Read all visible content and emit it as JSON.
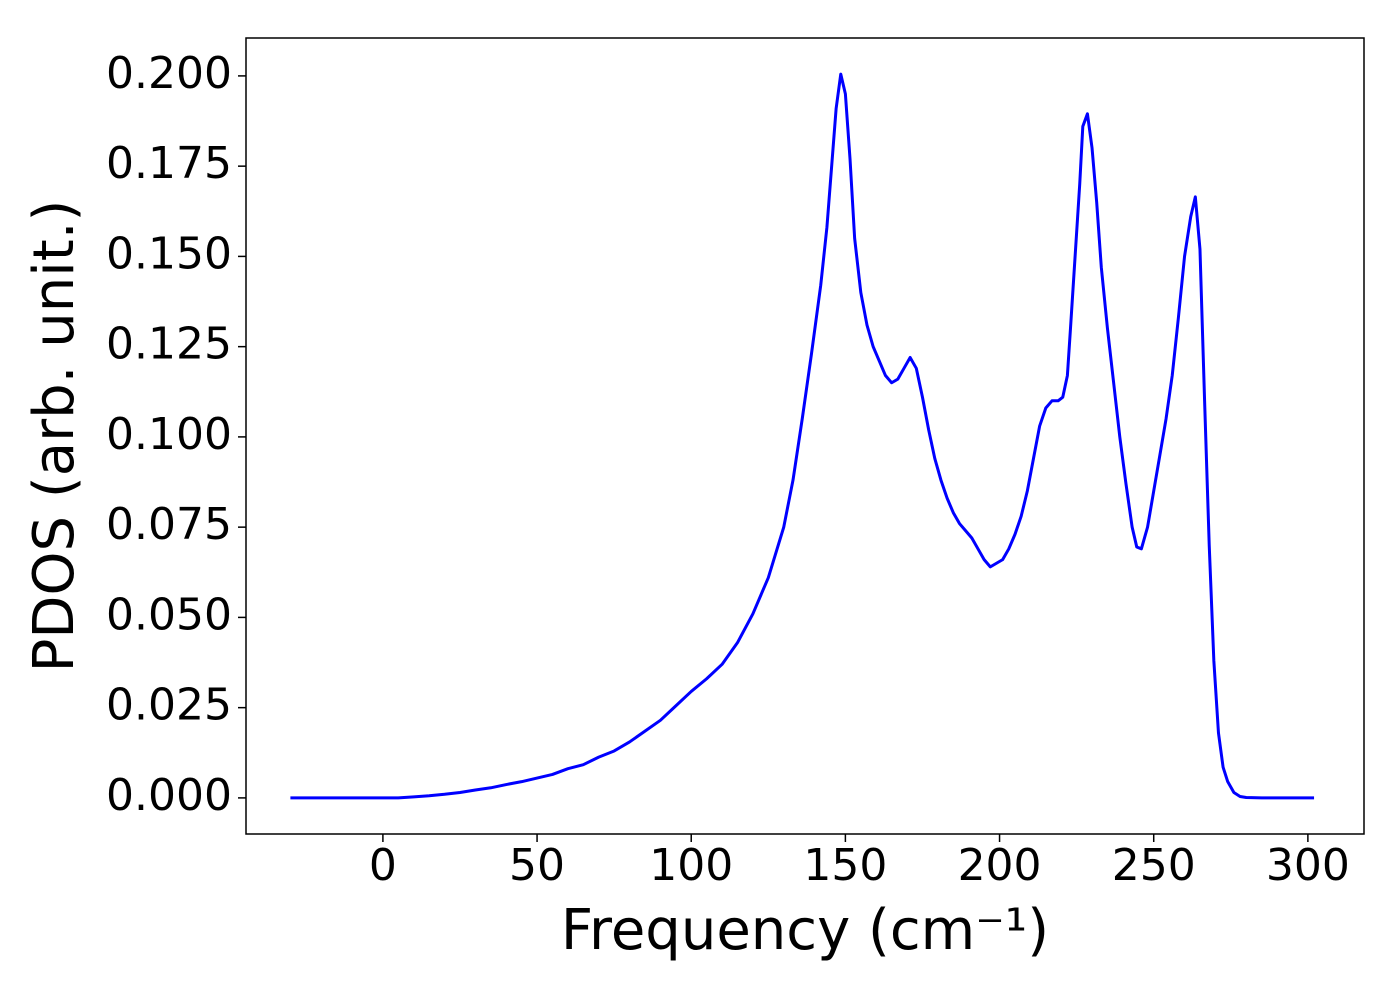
{
  "chart_data": {
    "type": "line",
    "xlabel": "Frequency (cm⁻¹)",
    "ylabel": "PDOS (arb. unit.)",
    "xlim": [
      -44.4,
      318.2
    ],
    "ylim": [
      -0.01,
      0.2105
    ],
    "xticks": [
      0,
      50,
      100,
      150,
      200,
      250,
      300
    ],
    "yticks": [
      {
        "value": 0,
        "label": "0.000"
      },
      {
        "value": 0.025,
        "label": "0.025"
      },
      {
        "value": 0.05,
        "label": "0.050"
      },
      {
        "value": 0.075,
        "label": "0.075"
      },
      {
        "value": 0.1,
        "label": "0.100"
      },
      {
        "value": 0.125,
        "label": "0.125"
      },
      {
        "value": 0.15,
        "label": "0.150"
      },
      {
        "value": 0.175,
        "label": "0.175"
      },
      {
        "value": 0.2,
        "label": "0.200"
      }
    ],
    "grid": false,
    "series": [
      {
        "color": "#0000ff",
        "x": [
          -30,
          -20,
          -10,
          0,
          5,
          10,
          15,
          20,
          25,
          30,
          35,
          40,
          45,
          50,
          55,
          60,
          65,
          70,
          75,
          80,
          85,
          90,
          95,
          100,
          105,
          110,
          115,
          120,
          125,
          130,
          133,
          136,
          139,
          142,
          144,
          146,
          147,
          148.5,
          150,
          151.5,
          153,
          155,
          157,
          159,
          161,
          163,
          165,
          167,
          169,
          171,
          173,
          175,
          177,
          179,
          181,
          183,
          185,
          187,
          189,
          191,
          193,
          195,
          197,
          199,
          201,
          203,
          205,
          207,
          209,
          211,
          213,
          215,
          217,
          219,
          220.5,
          222,
          223,
          224.5,
          226,
          227,
          228.5,
          230,
          231.5,
          233,
          235,
          237,
          239,
          241,
          243,
          244.5,
          246,
          248,
          250,
          252,
          254,
          256,
          258,
          260,
          262,
          263.5,
          265,
          266.5,
          268,
          269.5,
          271,
          272.5,
          274,
          276,
          278,
          280,
          285,
          290,
          295,
          302
        ],
        "values": [
          0,
          0,
          0,
          0,
          0,
          0.0003,
          0.0006,
          0.001,
          0.0015,
          0.0022,
          0.0028,
          0.0037,
          0.0045,
          0.0055,
          0.0065,
          0.0081,
          0.0092,
          0.0113,
          0.013,
          0.0155,
          0.0185,
          0.0215,
          0.0255,
          0.0295,
          0.033,
          0.037,
          0.043,
          0.051,
          0.061,
          0.075,
          0.088,
          0.105,
          0.123,
          0.142,
          0.158,
          0.18,
          0.191,
          0.2005,
          0.195,
          0.177,
          0.155,
          0.14,
          0.131,
          0.125,
          0.121,
          0.117,
          0.115,
          0.116,
          0.119,
          0.122,
          0.119,
          0.111,
          0.102,
          0.094,
          0.088,
          0.083,
          0.079,
          0.076,
          0.074,
          0.072,
          0.069,
          0.066,
          0.064,
          0.065,
          0.066,
          0.069,
          0.073,
          0.078,
          0.085,
          0.094,
          0.103,
          0.108,
          0.11,
          0.11,
          0.111,
          0.117,
          0.13,
          0.15,
          0.17,
          0.186,
          0.1895,
          0.18,
          0.165,
          0.147,
          0.13,
          0.115,
          0.1,
          0.087,
          0.075,
          0.0695,
          0.069,
          0.075,
          0.085,
          0.095,
          0.105,
          0.117,
          0.133,
          0.15,
          0.161,
          0.1665,
          0.152,
          0.11,
          0.07,
          0.038,
          0.018,
          0.0085,
          0.0045,
          0.0015,
          0.0004,
          0.0001,
          0,
          0,
          0,
          0
        ]
      }
    ]
  }
}
